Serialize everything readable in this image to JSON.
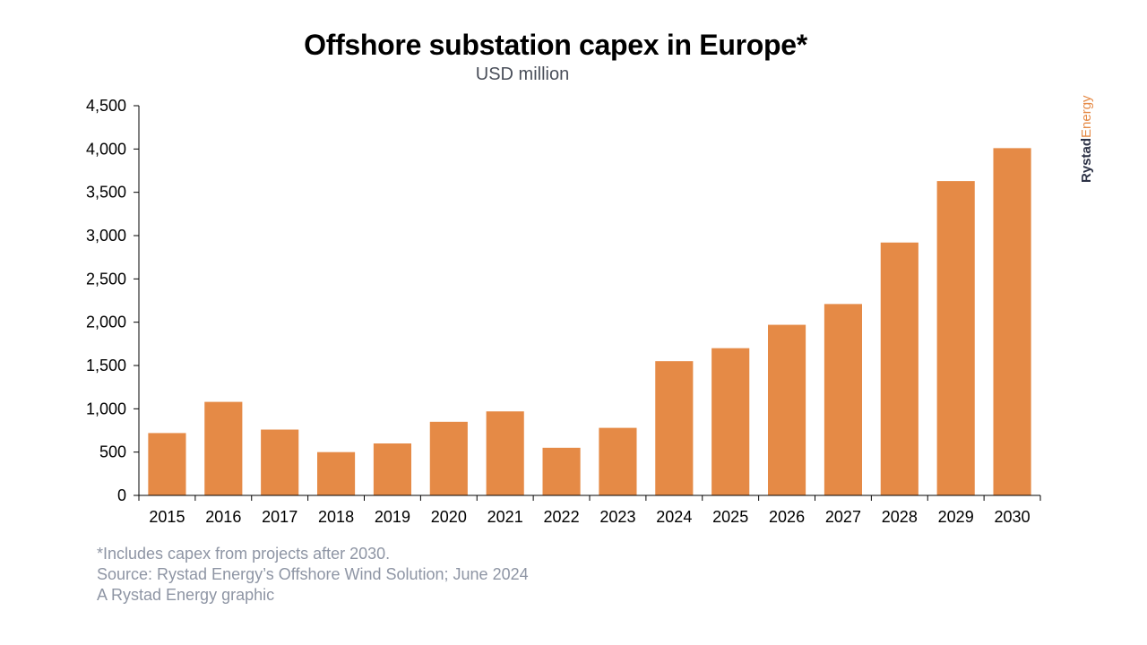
{
  "chart_data": {
    "type": "bar",
    "title": "Offshore substation capex in Europe*",
    "subtitle": "USD million",
    "xlabel": "",
    "ylabel": "",
    "categories": [
      "2015",
      "2016",
      "2017",
      "2018",
      "2019",
      "2020",
      "2021",
      "2022",
      "2023",
      "2024",
      "2025",
      "2026",
      "2027",
      "2028",
      "2029",
      "2030"
    ],
    "values": [
      720,
      1080,
      760,
      500,
      600,
      850,
      970,
      550,
      780,
      1550,
      1700,
      1970,
      2210,
      2920,
      3630,
      4010
    ],
    "ylim": [
      0,
      4500
    ],
    "yticks": [
      0,
      500,
      1000,
      1500,
      2000,
      2500,
      3000,
      3500,
      4000,
      4500
    ],
    "ytick_labels": [
      "0",
      "500",
      "1,000",
      "1,500",
      "2,000",
      "2,500",
      "3,000",
      "3,500",
      "4,000",
      "4,500"
    ],
    "grid": false,
    "legend": "none",
    "bar_color": "#e58a46"
  },
  "footnotes": {
    "note": "*Includes capex from projects after 2030.",
    "source": "Source: Rystad Energy’s Offshore Wind Solution; June 2024",
    "credit": "A Rystad Energy graphic"
  },
  "logo": {
    "part1": "Rystad",
    "part2": "Energy"
  }
}
